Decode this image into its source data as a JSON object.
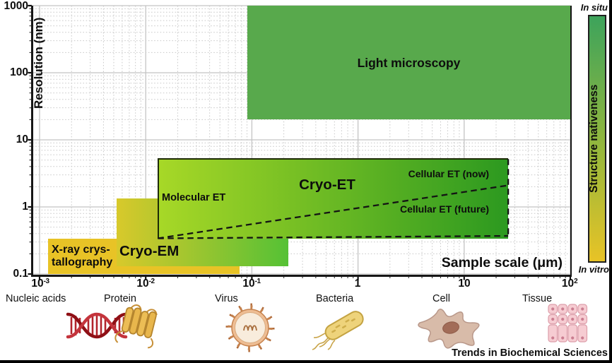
{
  "axes": {
    "ylabel": "Resolution (nm)",
    "xlabel": "Sample scale (μm)",
    "y_ticks": [
      "1000",
      "100",
      "10",
      "1",
      "0.1"
    ],
    "x_ticks": [
      {
        "base": "10",
        "exp": "-3"
      },
      {
        "base": "10",
        "exp": "-2"
      },
      {
        "base": "10",
        "exp": "-1"
      },
      {
        "base": "1",
        "exp": ""
      },
      {
        "base": "10",
        "exp": ""
      },
      {
        "base": "10",
        "exp": "2"
      }
    ]
  },
  "regions_labels": {
    "light": "Light microscopy",
    "cryo_et": "Cryo-ET",
    "molecular_et": "Molecular ET",
    "cellular_now": "Cellular ET (now)",
    "cellular_future": "Cellular ET (future)",
    "cryo_em": "Cryo-EM",
    "xray_line1": "X-ray crys-",
    "xray_line2": "tallography"
  },
  "colorbar": {
    "title": "Structure nativeness",
    "top_label": "In situ",
    "bottom_label": "In vitro"
  },
  "specimens": [
    {
      "label": "Nucleic acids",
      "icon": "dna-icon"
    },
    {
      "label": "Protein",
      "icon": "protein-icon"
    },
    {
      "label": "Virus",
      "icon": "virus-icon"
    },
    {
      "label": "Bacteria",
      "icon": "bacteria-icon"
    },
    {
      "label": "Cell",
      "icon": "cell-icon"
    },
    {
      "label": "Tissue",
      "icon": "tissue-icon"
    }
  ],
  "credit": "Trends in Biochemical Sciences",
  "chart_data": {
    "type": "area",
    "title": "",
    "xlabel": "Sample scale (μm)",
    "ylabel": "Resolution (nm)",
    "x_scale": "log",
    "y_scale": "log",
    "xlim_um": [
      0.001,
      100
    ],
    "ylim_nm": [
      0.1,
      1000
    ],
    "x_tick_values": [
      0.001,
      0.01,
      0.1,
      1,
      10,
      100
    ],
    "y_tick_values": [
      1000,
      100,
      10,
      1,
      0.1
    ],
    "grid": "major solid gray, log minor dotted gray",
    "regions": [
      {
        "key": "xray",
        "label": "X-ray crystallography",
        "x_um": [
          0.0012,
          0.077
        ],
        "y_nm": [
          0.1,
          0.34
        ],
        "fill": [
          "#e8c326",
          "#e8c326"
        ]
      },
      {
        "key": "cryo_em",
        "label": "Cryo-EM",
        "x_um": [
          0.0053,
          0.22
        ],
        "y_nm": [
          0.13,
          1.35
        ],
        "fill": [
          "#d8c92b",
          "#55c135"
        ]
      },
      {
        "key": "light",
        "label": "Light microscopy",
        "x_um": [
          0.09,
          100
        ],
        "y_nm": [
          20,
          1000
        ],
        "fill": [
          "#58a94c",
          "#58a94c"
        ]
      },
      {
        "key": "cryo_et",
        "label": "Cryo-ET",
        "x_um": [
          0.013,
          26
        ],
        "y_nm": [
          0.34,
          5.3
        ],
        "fill": [
          "#a7d827",
          "#2c9920"
        ],
        "border": "top/left solid, right/bottom dashed",
        "sub_labels": [
          "Molecular ET",
          "Cellular ET (now)",
          "Cellular ET (future)"
        ]
      }
    ],
    "dashed_lines": [
      {
        "label": "Cellular ET (now)",
        "from_um_nm": [
          0.013,
          0.34
        ],
        "to_um_nm": [
          26,
          2.1
        ]
      },
      {
        "label": "Cellular ET (future)",
        "from_um_nm": [
          0.013,
          0.34
        ],
        "to_um_nm": [
          26,
          0.37
        ]
      }
    ],
    "colorbar": {
      "label": "Structure nativeness",
      "top": "In situ",
      "bottom": "In vitro",
      "top_color": "#3da35b",
      "bottom_color": "#e8c326"
    },
    "specimen_scale": [
      "Nucleic acids",
      "Protein",
      "Virus",
      "Bacteria",
      "Cell",
      "Tissue"
    ]
  }
}
